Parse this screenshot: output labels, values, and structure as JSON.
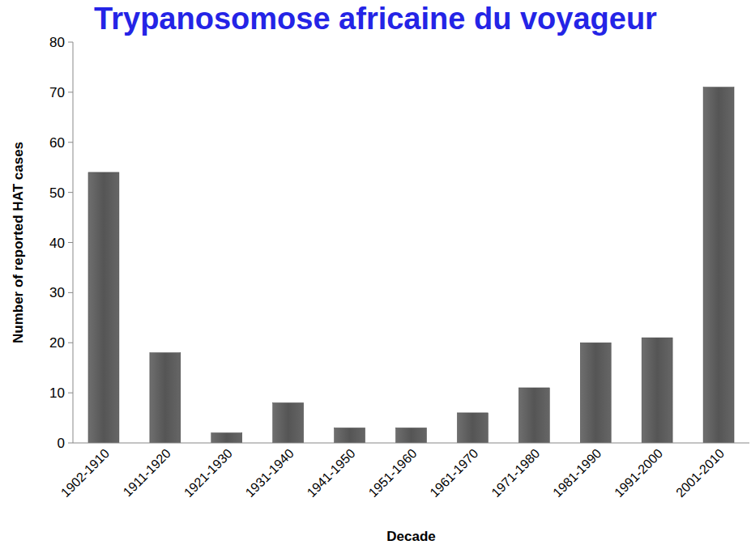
{
  "chart_data": {
    "type": "bar",
    "title": "Trypanosomose africaine du voyageur",
    "x_label": "Decade",
    "y_label": "Number of reported HAT cases",
    "categories": [
      "1902-1910",
      "1911-1920",
      "1921-1930",
      "1931-1940",
      "1941-1950",
      "1951-1960",
      "1961-1970",
      "1971-1980",
      "1981-1990",
      "1991-2000",
      "2001-2010"
    ],
    "values": [
      54,
      18,
      2,
      8,
      3,
      3,
      6,
      11,
      20,
      21,
      71
    ],
    "color": "#555555",
    "ylim": [
      0,
      80
    ],
    "yticks": [
      0,
      10,
      20,
      30,
      40,
      50,
      60,
      70,
      80
    ],
    "grid": false
  }
}
